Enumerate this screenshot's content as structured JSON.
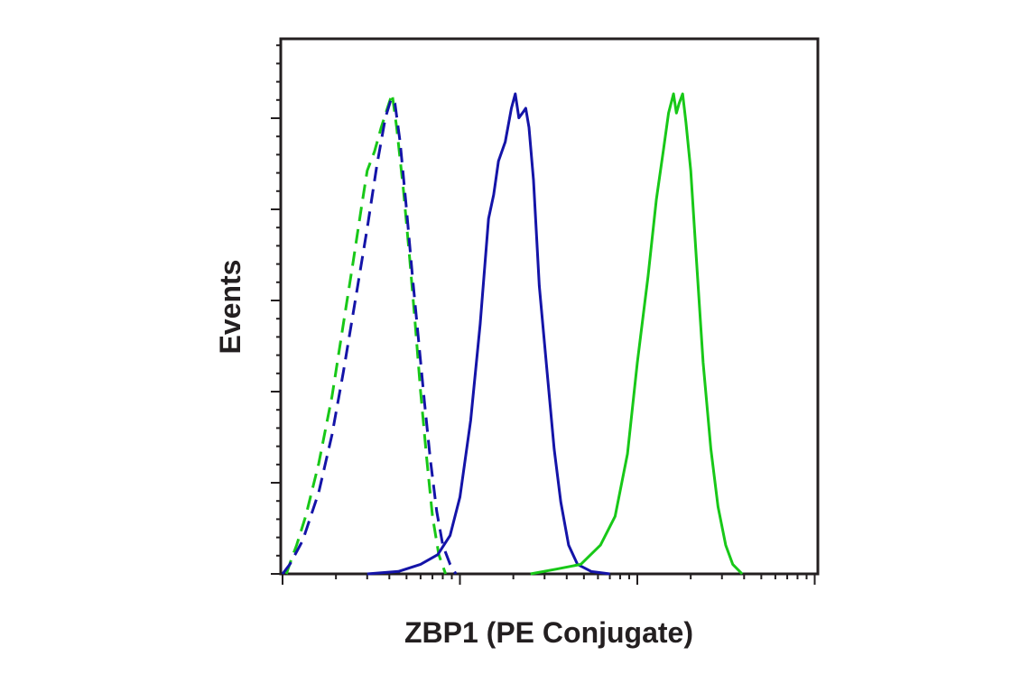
{
  "chart_data": {
    "type": "line",
    "title": "",
    "xlabel": "ZBP1 (PE Conjugate)",
    "ylabel": "Events",
    "x_scale": "log",
    "xlim": [
      1,
      1000
    ],
    "ylim": [
      0,
      1.0
    ],
    "grid": false,
    "legend": "none",
    "y_ticks_labeled": false,
    "x_ticks_labeled": false,
    "colors": {
      "axis": "#231f20",
      "blue": "#1414a8",
      "green": "#18c818"
    },
    "series": [
      {
        "color": "#18c818",
        "style": "dashed",
        "points": [
          [
            1.05,
            0.0
          ],
          [
            1.12,
            0.03
          ],
          [
            1.2,
            0.06
          ],
          [
            1.35,
            0.12
          ],
          [
            1.6,
            0.23
          ],
          [
            1.9,
            0.37
          ],
          [
            2.2,
            0.52
          ],
          [
            2.5,
            0.65
          ],
          [
            2.8,
            0.77
          ],
          [
            3.0,
            0.84
          ],
          [
            3.3,
            0.88
          ],
          [
            3.6,
            0.93
          ],
          [
            3.9,
            0.97
          ],
          [
            4.15,
            1.0
          ],
          [
            4.4,
            0.93
          ],
          [
            4.8,
            0.8
          ],
          [
            5.2,
            0.66
          ],
          [
            5.6,
            0.52
          ],
          [
            6.0,
            0.38
          ],
          [
            6.5,
            0.24
          ],
          [
            7.0,
            0.12
          ],
          [
            7.6,
            0.04
          ],
          [
            8.3,
            0.0
          ]
        ]
      },
      {
        "color": "#1414a8",
        "style": "dashed",
        "points": [
          [
            1.0,
            0.0
          ],
          [
            1.1,
            0.02
          ],
          [
            1.3,
            0.07
          ],
          [
            1.6,
            0.17
          ],
          [
            1.9,
            0.29
          ],
          [
            2.2,
            0.42
          ],
          [
            2.6,
            0.58
          ],
          [
            3.0,
            0.72
          ],
          [
            3.4,
            0.85
          ],
          [
            3.8,
            0.95
          ],
          [
            4.1,
            0.99
          ],
          [
            4.3,
            0.98
          ],
          [
            4.6,
            0.9
          ],
          [
            5.0,
            0.76
          ],
          [
            5.4,
            0.62
          ],
          [
            5.8,
            0.5
          ],
          [
            6.3,
            0.36
          ],
          [
            6.8,
            0.24
          ],
          [
            7.4,
            0.13
          ],
          [
            8.0,
            0.06
          ],
          [
            8.8,
            0.02
          ],
          [
            9.5,
            0.0
          ]
        ]
      },
      {
        "color": "#1414a8",
        "style": "solid",
        "points": [
          [
            3.0,
            0.0
          ],
          [
            4.5,
            0.005
          ],
          [
            6.0,
            0.02
          ],
          [
            7.5,
            0.04
          ],
          [
            8.8,
            0.08
          ],
          [
            10.0,
            0.16
          ],
          [
            11.5,
            0.32
          ],
          [
            13.0,
            0.52
          ],
          [
            14.5,
            0.74
          ],
          [
            15.5,
            0.79
          ],
          [
            16.5,
            0.86
          ],
          [
            18.0,
            0.9
          ],
          [
            19.5,
            0.97
          ],
          [
            20.5,
            1.0
          ],
          [
            21.5,
            0.95
          ],
          [
            22.5,
            0.96
          ],
          [
            23.5,
            0.97
          ],
          [
            24.5,
            0.93
          ],
          [
            26.0,
            0.82
          ],
          [
            28.0,
            0.6
          ],
          [
            31.0,
            0.42
          ],
          [
            34.0,
            0.26
          ],
          [
            37.0,
            0.15
          ],
          [
            41.0,
            0.06
          ],
          [
            46.0,
            0.02
          ],
          [
            55.0,
            0.005
          ],
          [
            70.0,
            0.0
          ]
        ]
      },
      {
        "color": "#18c818",
        "style": "solid",
        "points": [
          [
            25.0,
            0.0
          ],
          [
            35.0,
            0.01
          ],
          [
            48.0,
            0.02
          ],
          [
            62.0,
            0.06
          ],
          [
            75.0,
            0.12
          ],
          [
            88.0,
            0.25
          ],
          [
            100.0,
            0.44
          ],
          [
            115.0,
            0.62
          ],
          [
            128.0,
            0.78
          ],
          [
            140.0,
            0.88
          ],
          [
            150.0,
            0.96
          ],
          [
            160.0,
            1.0
          ],
          [
            166.0,
            0.96
          ],
          [
            172.0,
            0.98
          ],
          [
            180.0,
            1.0
          ],
          [
            188.0,
            0.94
          ],
          [
            200.0,
            0.84
          ],
          [
            215.0,
            0.66
          ],
          [
            235.0,
            0.44
          ],
          [
            260.0,
            0.26
          ],
          [
            285.0,
            0.14
          ],
          [
            315.0,
            0.06
          ],
          [
            345.0,
            0.02
          ],
          [
            390.0,
            0.0
          ]
        ]
      }
    ]
  }
}
